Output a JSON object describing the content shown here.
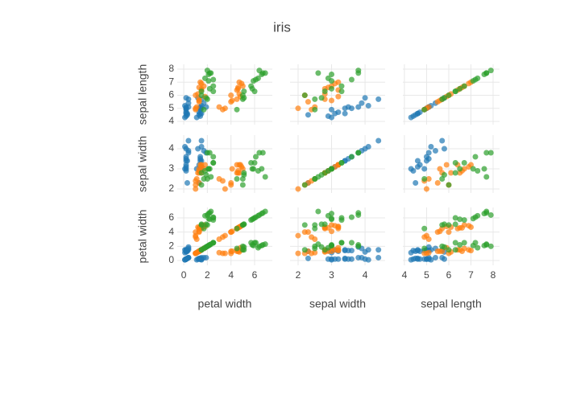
{
  "chart_data": {
    "type": "splom",
    "title": "iris",
    "columns": [
      {
        "label": "petal width",
        "xlim": [
          -0.55,
          7.5
        ],
        "xticks": [
          0,
          2,
          4,
          6
        ]
      },
      {
        "label": "sepal width",
        "xlim": [
          1.76,
          4.6
        ],
        "xticks": [
          2,
          3,
          4
        ]
      },
      {
        "label": "sepal length",
        "xlim": [
          3.93,
          8.29
        ],
        "xticks": [
          4,
          5,
          6,
          7,
          8
        ]
      }
    ],
    "rows": [
      {
        "label": "sepal length",
        "ylim": [
          3.75,
          8.37
        ],
        "yticks": [
          4,
          5,
          6,
          7,
          8
        ]
      },
      {
        "label": "sepal width",
        "ylim": [
          1.8,
          4.68
        ],
        "yticks": [
          2,
          3,
          4
        ]
      },
      {
        "label": "petal width",
        "ylim": [
          -0.68,
          7.47
        ],
        "yticks": [
          0,
          2,
          4,
          6
        ]
      }
    ],
    "grid": true,
    "series": [
      {
        "color": "#1f77b4",
        "dimensions": [
          [
            5.1,
            4.9,
            4.7,
            4.6,
            5.0,
            5.4,
            4.6,
            5.0,
            4.4,
            5.7,
            5.8,
            4.3,
            5.2,
            4.5,
            5.1
          ],
          [
            3.5,
            3.0,
            3.2,
            3.1,
            3.6,
            3.9,
            3.4,
            3.4,
            2.9,
            4.4,
            4.0,
            3.0,
            4.1,
            2.3,
            3.8
          ],
          [
            1.4,
            1.4,
            1.3,
            1.5,
            1.4,
            1.7,
            1.4,
            1.5,
            1.4,
            1.5,
            1.2,
            1.1,
            1.5,
            1.3,
            1.9
          ],
          [
            0.2,
            0.2,
            0.2,
            0.2,
            0.2,
            0.4,
            0.3,
            0.2,
            0.2,
            0.4,
            0.2,
            0.1,
            0.1,
            0.3,
            0.4
          ]
        ]
      },
      {
        "color": "#ff7f0e",
        "dimensions": [
          [
            7.0,
            6.4,
            6.9,
            5.5,
            6.5,
            5.7,
            4.9,
            6.6,
            5.0,
            6.0,
            5.9,
            6.1,
            5.1,
            6.7,
            5.6
          ],
          [
            3.2,
            3.2,
            3.1,
            2.3,
            2.8,
            2.8,
            2.4,
            2.9,
            2.0,
            2.2,
            3.2,
            2.8,
            2.5,
            3.0,
            3.0
          ],
          [
            4.7,
            4.5,
            4.9,
            4.0,
            4.6,
            4.5,
            3.3,
            4.6,
            3.5,
            4.0,
            4.8,
            4.7,
            3.0,
            5.0,
            4.1
          ],
          [
            1.4,
            1.5,
            1.5,
            1.3,
            1.5,
            1.3,
            1.0,
            1.3,
            1.0,
            1.0,
            1.8,
            1.2,
            1.1,
            1.7,
            1.3
          ]
        ]
      },
      {
        "color": "#2ca02c",
        "dimensions": [
          [
            6.3,
            5.8,
            7.1,
            6.5,
            7.6,
            4.9,
            7.3,
            7.2,
            5.7,
            7.7,
            7.7,
            6.0,
            7.9,
            6.3,
            6.7
          ],
          [
            3.3,
            2.7,
            3.0,
            3.0,
            3.0,
            2.5,
            2.9,
            3.6,
            2.5,
            3.8,
            2.6,
            2.2,
            3.8,
            2.8,
            3.3
          ],
          [
            6.0,
            5.1,
            5.9,
            5.8,
            6.6,
            4.5,
            6.3,
            6.1,
            5.0,
            6.7,
            6.9,
            5.0,
            6.4,
            5.1,
            5.7
          ],
          [
            2.5,
            1.9,
            2.1,
            2.2,
            2.1,
            1.7,
            1.8,
            2.5,
            2.0,
            2.2,
            2.3,
            1.5,
            2.0,
            1.5,
            2.5
          ]
        ]
      }
    ]
  }
}
